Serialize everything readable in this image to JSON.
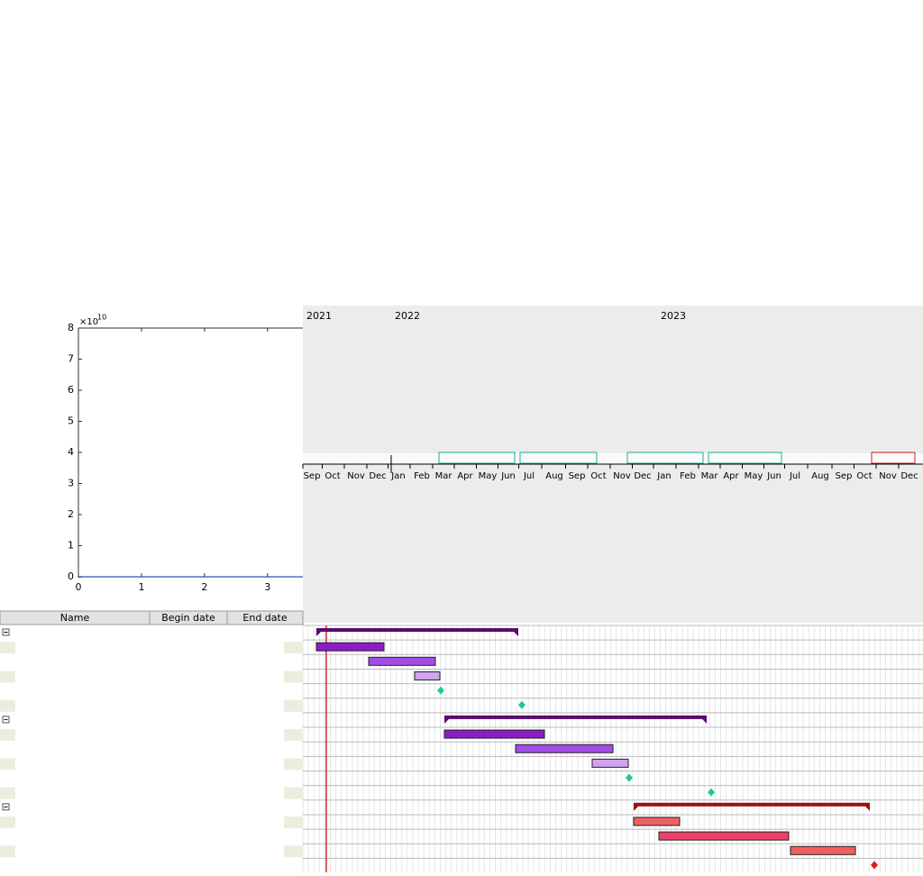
{
  "plot": {
    "xticks": [
      0,
      1,
      2,
      3
    ],
    "yticks": [
      0,
      1,
      2,
      3,
      4,
      5,
      6,
      7,
      8
    ],
    "xlim": [
      0,
      3.56
    ],
    "ylim": [
      0,
      8
    ],
    "exponent_base": "×10",
    "exponent_power": "10"
  },
  "timeline": {
    "years": [
      "2021",
      "2022",
      "2023"
    ],
    "months": [
      "Sep",
      "Oct",
      "Nov",
      "Dec",
      "Jan",
      "Feb",
      "Mar",
      "Apr",
      "May",
      "Jun",
      "Jul",
      "Aug",
      "Sep",
      "Oct",
      "Nov",
      "Dec",
      "Jan",
      "Feb",
      "Mar",
      "Apr",
      "May",
      "Jun",
      "Jul",
      "Aug",
      "Sep",
      "Oct",
      "Nov",
      "Dec"
    ]
  },
  "table": {
    "columns": [
      "Name",
      "Begin date",
      "End date"
    ]
  }
}
